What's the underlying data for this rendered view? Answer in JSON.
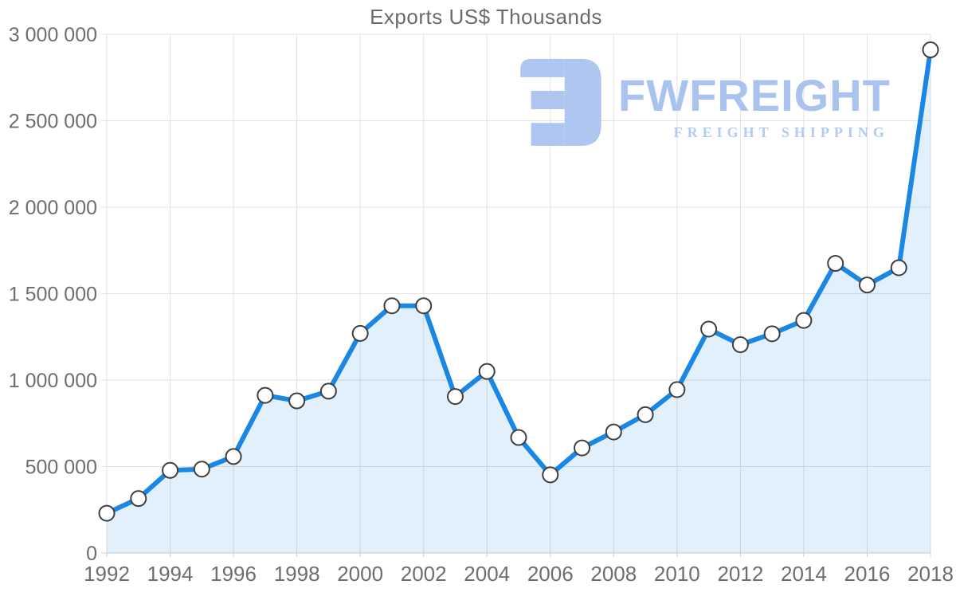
{
  "page": {
    "background": "#ffffff"
  },
  "watermark": {
    "brand": "FWFREIGHT",
    "tagline": "FREIGHT SHIPPING",
    "brand_color": "#a9c3ee",
    "tagline_color": "#b5caf2",
    "icon_color": "#aec6f0"
  },
  "chart_data": {
    "type": "area",
    "title": "Exports US$ Thousands",
    "x": [
      1992,
      1993,
      1994,
      1995,
      1996,
      1997,
      1998,
      1999,
      2000,
      2001,
      2002,
      2003,
      2004,
      2005,
      2006,
      2007,
      2008,
      2009,
      2010,
      2011,
      2012,
      2013,
      2014,
      2015,
      2016,
      2017,
      2018
    ],
    "series": [
      {
        "name": "Exports US$ Thousands",
        "values": [
          230000,
          315000,
          478000,
          485000,
          558000,
          912000,
          880000,
          936000,
          1270000,
          1430000,
          1430000,
          905000,
          1050000,
          668000,
          452000,
          608000,
          700000,
          800000,
          945000,
          1295000,
          1205000,
          1268000,
          1345000,
          1675000,
          1550000,
          1650000,
          2910000
        ]
      }
    ],
    "xlabel": "",
    "ylabel": "",
    "ylim": [
      0,
      3000000
    ],
    "y_tick_values": [
      0,
      500000,
      1000000,
      1500000,
      2000000,
      2500000,
      3000000
    ],
    "y_tick_labels": [
      "0",
      "500 000",
      "1 000 000",
      "1 500 000",
      "2 000 000",
      "2 500 000",
      "3 000 000"
    ],
    "x_tick_years": [
      1992,
      1994,
      1996,
      1998,
      2000,
      2002,
      2004,
      2006,
      2008,
      2010,
      2012,
      2014,
      2016,
      2018
    ],
    "grid": true,
    "legend": "none",
    "marker": "white-circle",
    "colors": {
      "line": "#1b87e5",
      "area_fill": "rgba(30,136,229,0.13)",
      "grid": "#e2e2e2",
      "axis_line": "#d2d2d2",
      "tick": "#c9c9c9",
      "marker_fill": "#ffffff",
      "marker_stroke": "#3f3f3f",
      "axis_label": "#6e6e6e",
      "title": "#6b6b6b"
    }
  }
}
